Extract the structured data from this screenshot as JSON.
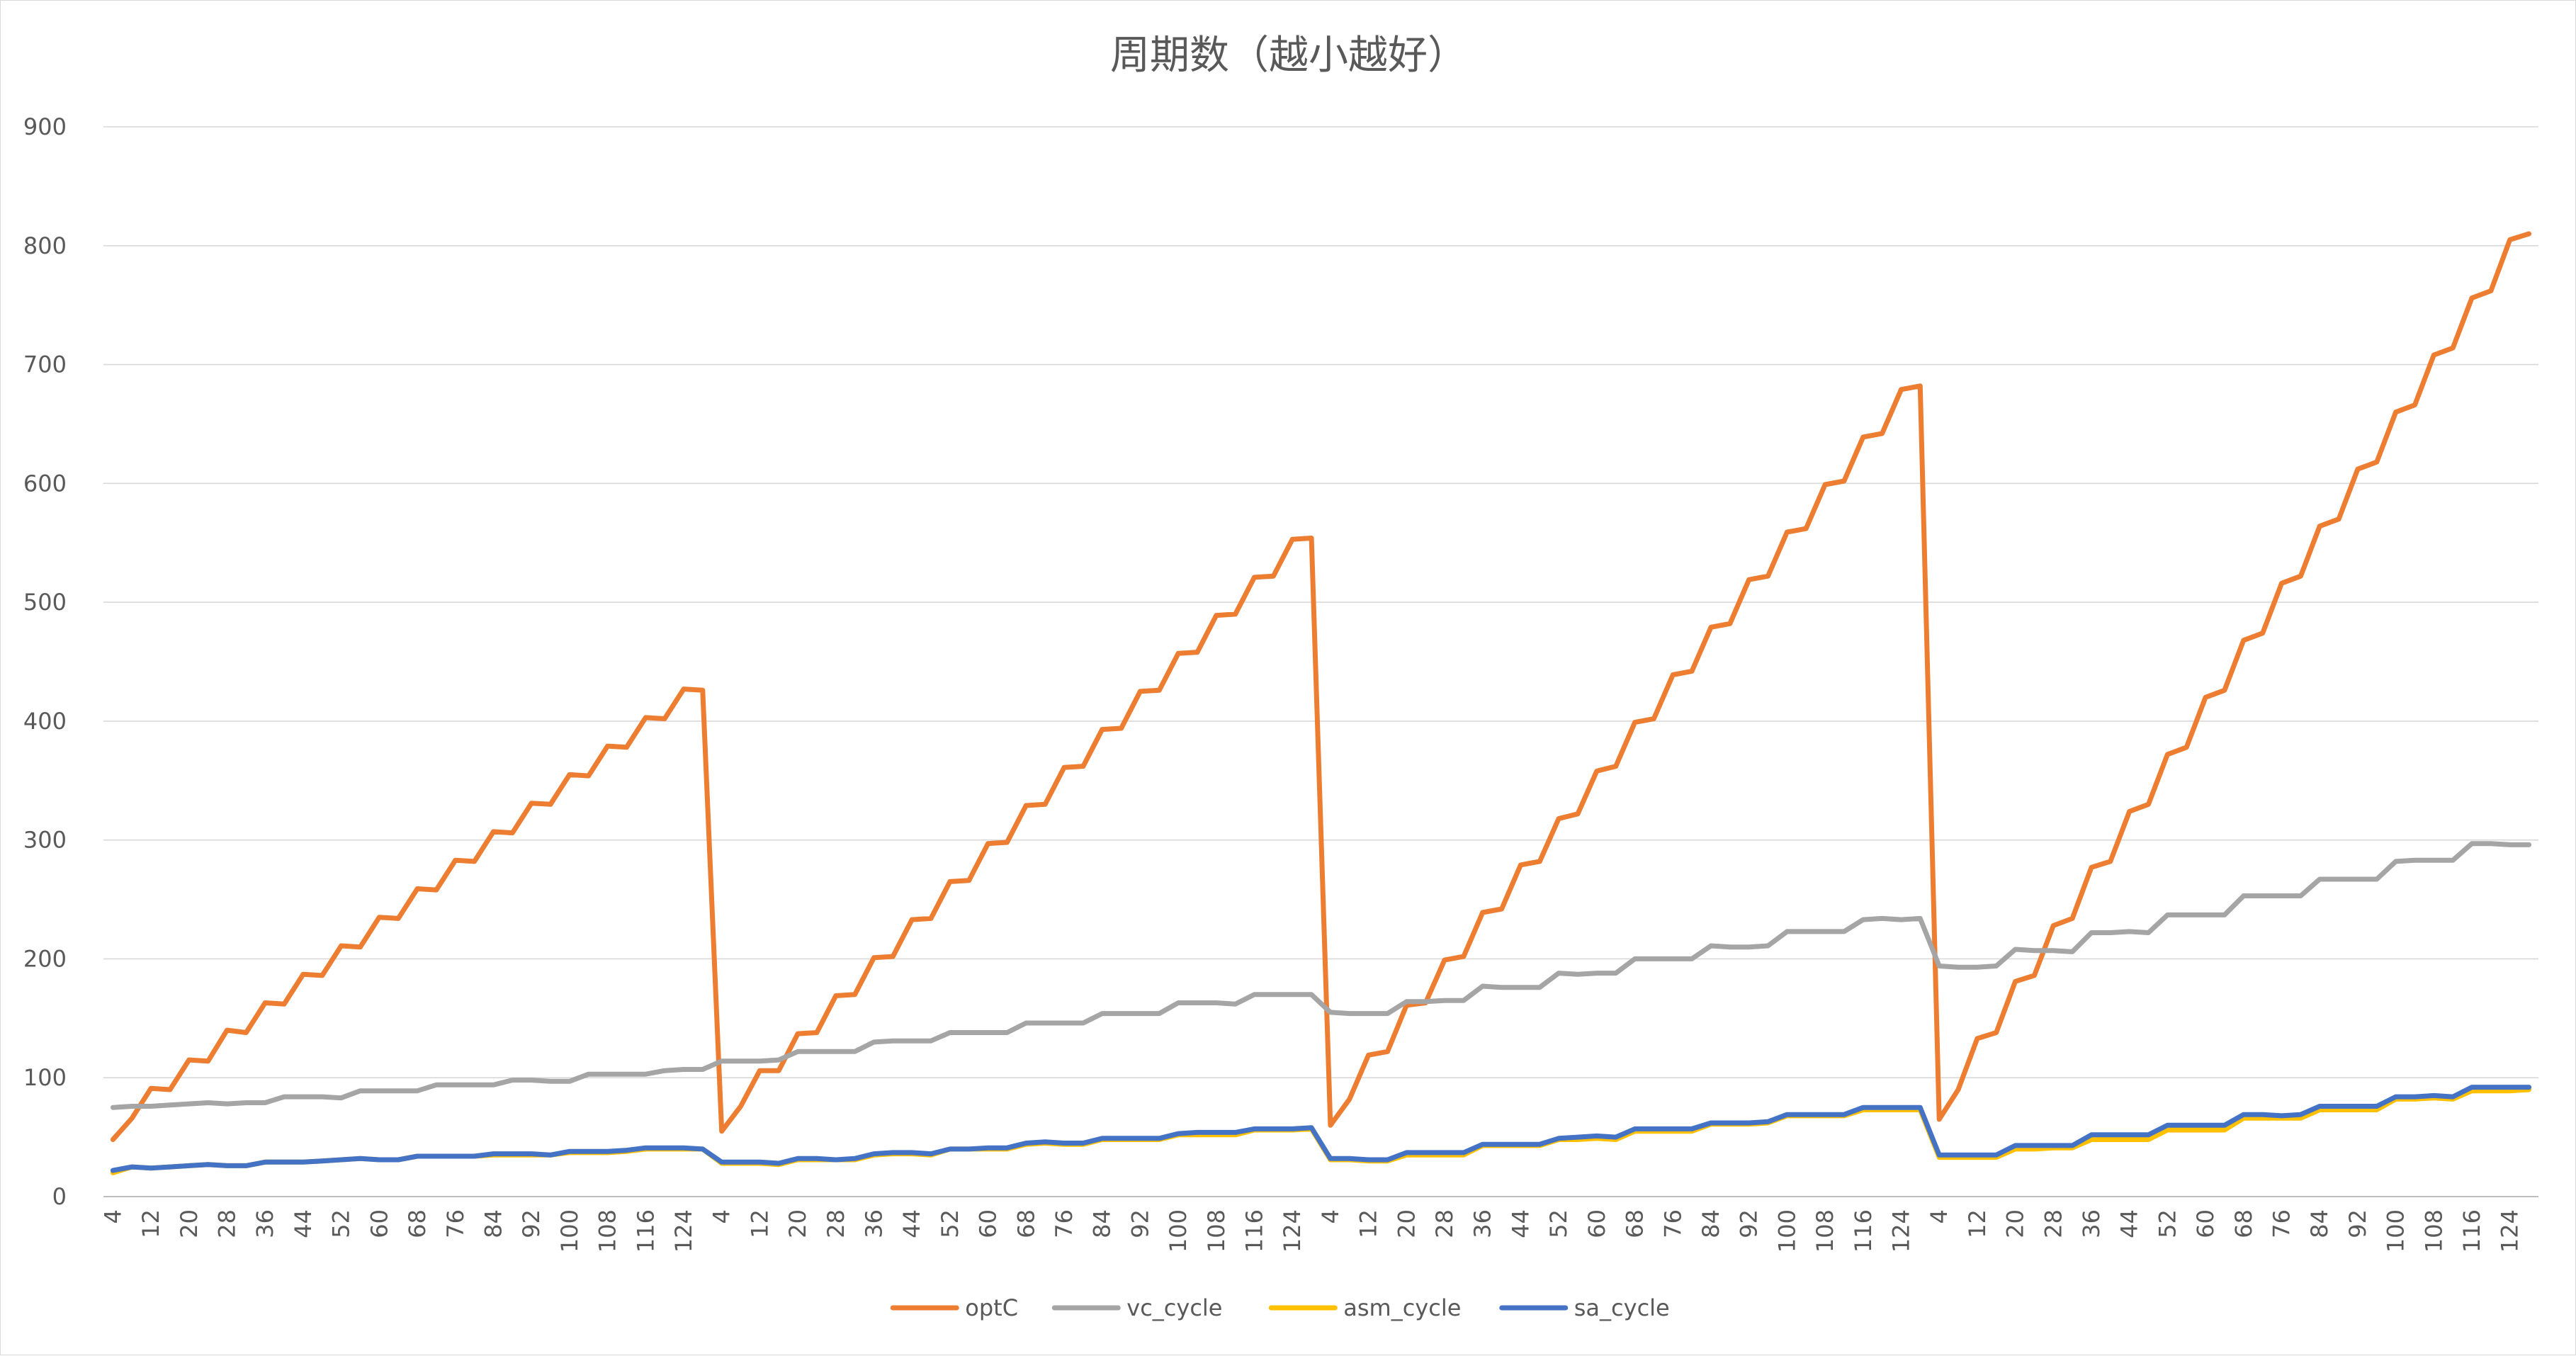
{
  "chart_data": {
    "type": "line",
    "title": "周期数（越小越好）",
    "xlabel": "",
    "ylabel": "",
    "ylim": [
      0,
      900
    ],
    "yticks": [
      0,
      100,
      200,
      300,
      400,
      500,
      600,
      700,
      800,
      900
    ],
    "grid": true,
    "legend_position": "bottom",
    "xtick_labels": [
      "4",
      "12",
      "20",
      "28",
      "36",
      "44",
      "52",
      "60",
      "68",
      "76",
      "84",
      "92",
      "100",
      "108",
      "116",
      "124"
    ],
    "series": [
      {
        "name": "optC",
        "color": "#ED7D31",
        "groups": [
          [
            48,
            66,
            91,
            90,
            115,
            114,
            140,
            138,
            163,
            162,
            187,
            186,
            211,
            210,
            235,
            234,
            259,
            258,
            283,
            282,
            307,
            306,
            331,
            330,
            355,
            354,
            379,
            378,
            403,
            402,
            427,
            426
          ],
          [
            55,
            76,
            106,
            106,
            137,
            138,
            169,
            170,
            201,
            202,
            233,
            234,
            265,
            266,
            297,
            298,
            329,
            330,
            361,
            362,
            393,
            394,
            425,
            426,
            457,
            458,
            489,
            490,
            521,
            522,
            553,
            554
          ],
          [
            60,
            82,
            119,
            122,
            161,
            163,
            199,
            202,
            239,
            242,
            279,
            282,
            318,
            322,
            358,
            362,
            399,
            402,
            439,
            442,
            479,
            482,
            519,
            522,
            559,
            562,
            599,
            602,
            639,
            642,
            679,
            682
          ],
          [
            65,
            90,
            133,
            138,
            181,
            186,
            228,
            234,
            277,
            282,
            324,
            330,
            372,
            378,
            420,
            426,
            468,
            474,
            516,
            522,
            564,
            570,
            612,
            618,
            660,
            666,
            708,
            714,
            756,
            762,
            805,
            810
          ]
        ]
      },
      {
        "name": "vc_cycle",
        "color": "#A5A5A5",
        "groups": [
          [
            75,
            76,
            76,
            77,
            78,
            79,
            78,
            79,
            79,
            84,
            84,
            84,
            83,
            89,
            89,
            89,
            89,
            94,
            94,
            94,
            94,
            98,
            98,
            97,
            97,
            103,
            103,
            103,
            103,
            106,
            107,
            107
          ],
          [
            114,
            114,
            114,
            115,
            122,
            122,
            122,
            122,
            130,
            131,
            131,
            131,
            138,
            138,
            138,
            138,
            146,
            146,
            146,
            146,
            154,
            154,
            154,
            154,
            163,
            163,
            163,
            162,
            170,
            170,
            170,
            170
          ],
          [
            155,
            154,
            154,
            154,
            164,
            164,
            165,
            165,
            177,
            176,
            176,
            176,
            188,
            187,
            188,
            188,
            200,
            200,
            200,
            200,
            211,
            210,
            210,
            211,
            223,
            223,
            223,
            223,
            233,
            234,
            233,
            234
          ],
          [
            194,
            193,
            193,
            194,
            208,
            207,
            207,
            206,
            222,
            222,
            223,
            222,
            237,
            237,
            237,
            237,
            253,
            253,
            253,
            253,
            267,
            267,
            267,
            267,
            282,
            283,
            283,
            283,
            297,
            297,
            296,
            296
          ]
        ]
      },
      {
        "name": "asm_cycle",
        "color": "#FFC000",
        "groups": [
          [
            20,
            25,
            24,
            25,
            26,
            27,
            26,
            26,
            29,
            29,
            29,
            30,
            31,
            32,
            31,
            31,
            34,
            34,
            34,
            34,
            35,
            35,
            35,
            35,
            37,
            37,
            37,
            38,
            40,
            40,
            40,
            40
          ],
          [
            28,
            28,
            28,
            27,
            31,
            31,
            31,
            31,
            35,
            36,
            36,
            35,
            40,
            40,
            40,
            40,
            44,
            45,
            44,
            44,
            48,
            48,
            48,
            48,
            52,
            52,
            52,
            52,
            56,
            56,
            56,
            57
          ],
          [
            31,
            31,
            30,
            30,
            35,
            35,
            35,
            35,
            43,
            43,
            43,
            43,
            48,
            48,
            49,
            48,
            55,
            55,
            55,
            55,
            61,
            61,
            61,
            62,
            68,
            68,
            68,
            68,
            73,
            73,
            73,
            73
          ],
          [
            33,
            33,
            33,
            33,
            40,
            40,
            41,
            41,
            48,
            48,
            48,
            48,
            56,
            56,
            56,
            56,
            66,
            66,
            66,
            66,
            73,
            73,
            73,
            73,
            82,
            82,
            83,
            82,
            89,
            89,
            89,
            90
          ]
        ]
      },
      {
        "name": "sa_cycle",
        "color": "#4472C4",
        "groups": [
          [
            22,
            25,
            24,
            25,
            26,
            27,
            26,
            26,
            29,
            29,
            29,
            30,
            31,
            32,
            31,
            31,
            34,
            34,
            34,
            34,
            36,
            36,
            36,
            35,
            38,
            38,
            38,
            39,
            41,
            41,
            41,
            40
          ],
          [
            29,
            29,
            29,
            28,
            32,
            32,
            31,
            32,
            36,
            37,
            37,
            36,
            40,
            40,
            41,
            41,
            45,
            46,
            45,
            45,
            49,
            49,
            49,
            49,
            53,
            54,
            54,
            54,
            57,
            57,
            57,
            58
          ],
          [
            32,
            32,
            31,
            31,
            37,
            37,
            37,
            37,
            44,
            44,
            44,
            44,
            49,
            50,
            51,
            50,
            57,
            57,
            57,
            57,
            62,
            62,
            62,
            63,
            69,
            69,
            69,
            69,
            75,
            75,
            75,
            75
          ],
          [
            35,
            35,
            35,
            35,
            43,
            43,
            43,
            43,
            52,
            52,
            52,
            52,
            60,
            60,
            60,
            60,
            69,
            69,
            68,
            69,
            76,
            76,
            76,
            76,
            84,
            84,
            85,
            84,
            92,
            92,
            92,
            92
          ]
        ]
      }
    ]
  }
}
